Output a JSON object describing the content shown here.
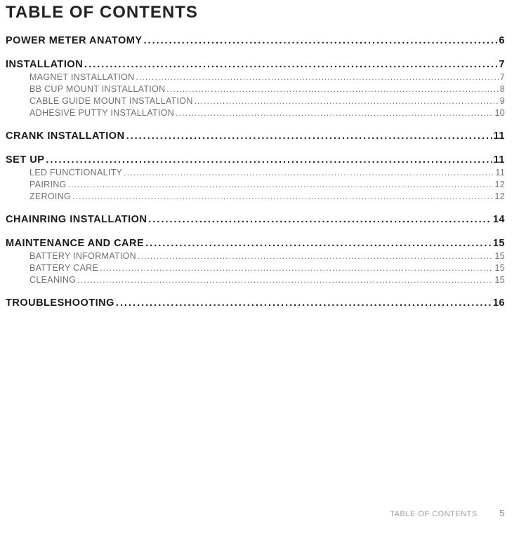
{
  "title": "TABLE OF CONTENTS",
  "footer_label": "TABLE OF CONTENTS",
  "footer_page": "5",
  "sections": [
    {
      "label": "POWER METER ANATOMY",
      "page": "6",
      "subs": []
    },
    {
      "label": "INSTALLATION",
      "page": "7",
      "subs": [
        {
          "label": "MAGNET INSTALLATION",
          "page": "7"
        },
        {
          "label": "BB CUP MOUNT INSTALLATION",
          "page": "8"
        },
        {
          "label": "CABLE GUIDE MOUNT INSTALLATION",
          "page": "9"
        },
        {
          "label": "ADHESIVE PUTTY INSTALLATION",
          "page": "10"
        }
      ]
    },
    {
      "label": "CRANK INSTALLATION",
      "page": "11",
      "subs": []
    },
    {
      "label": "SET UP",
      "page": "11",
      "subs": [
        {
          "label": "LED FUNCTIONALITY",
          "page": "11"
        },
        {
          "label": "PAIRING",
          "page": "12"
        },
        {
          "label": "ZEROING",
          "page": "12"
        }
      ]
    },
    {
      "label": "CHAINRING INSTALLATION",
      "page": "14",
      "subs": []
    },
    {
      "label": "MAINTENANCE AND CARE",
      "page": "15",
      "subs": [
        {
          "label": "BATTERY INFORMATION",
          "page": "15"
        },
        {
          "label": "BATTERY CARE",
          "page": "15"
        },
        {
          "label": "CLEANING",
          "page": "15"
        }
      ]
    },
    {
      "label": "TROUBLESHOOTING",
      "page": "16",
      "subs": []
    }
  ]
}
